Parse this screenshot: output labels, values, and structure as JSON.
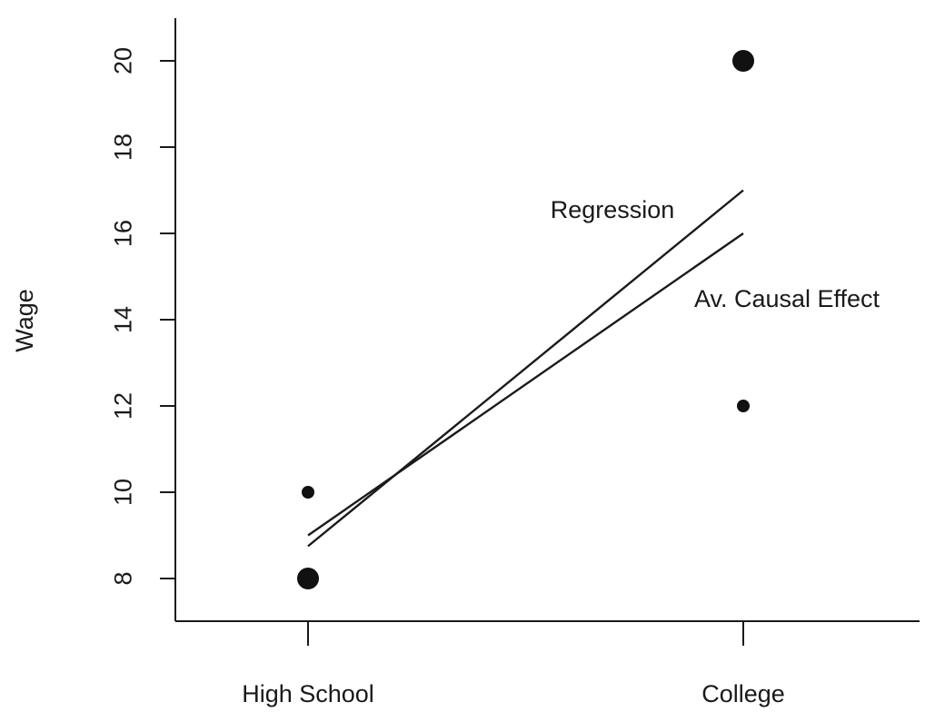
{
  "chart_data": {
    "type": "scatter",
    "title": "",
    "xlabel": "",
    "ylabel": "Wage",
    "categories": [
      "High School",
      "College"
    ],
    "ylim": [
      7,
      21
    ],
    "yticks": [
      8,
      10,
      12,
      14,
      16,
      18,
      20
    ],
    "grid": false,
    "points": [
      {
        "category": "High School",
        "y": 8,
        "marker": "large"
      },
      {
        "category": "High School",
        "y": 10,
        "marker": "small"
      },
      {
        "category": "College",
        "y": 12,
        "marker": "small"
      },
      {
        "category": "College",
        "y": 20,
        "marker": "large"
      }
    ],
    "lines": [
      {
        "name": "Regression",
        "y_start": 8.75,
        "y_end": 17
      },
      {
        "name": "Av. Causal Effect",
        "y_start": 9,
        "y_end": 16
      }
    ],
    "colors": {
      "ink": "#1a1a1a",
      "background": "#ffffff"
    }
  }
}
